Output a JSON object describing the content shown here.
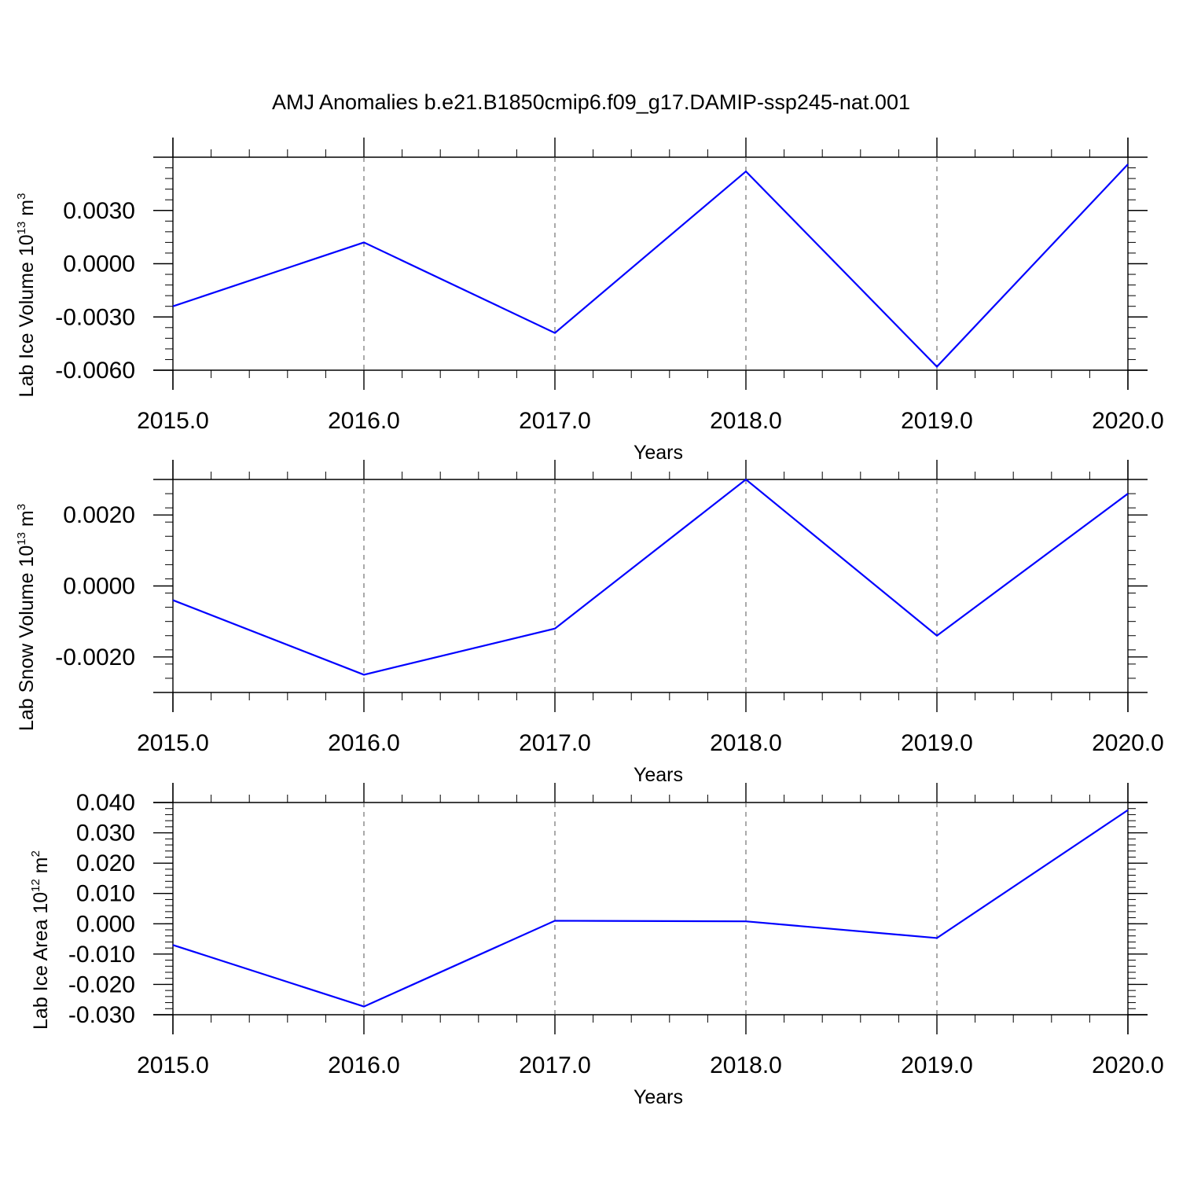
{
  "title": "AMJ Anomalies b.e21.B1850cmip6.f09_g17.DAMIP-ssp245-nat.001",
  "line_color": "#0000ff",
  "chart_data": [
    {
      "type": "line",
      "ylabel": "Lab Ice Volume 10",
      "ylabel_exp": "13",
      "ylabel_unit": "m",
      "ylabel_unit_exp": "3",
      "xlabel": "Years",
      "x_tick_labels": [
        "2015.0",
        "2016.0",
        "2017.0",
        "2018.0",
        "2019.0",
        "2020.0"
      ],
      "x_ticks": [
        2015,
        2016,
        2017,
        2018,
        2019,
        2020
      ],
      "y_tick_labels": [
        "-0.0060",
        "-0.0030",
        "0.0000",
        "0.0030"
      ],
      "y_ticks": [
        -0.006,
        -0.003,
        0.0,
        0.003
      ],
      "xlim": [
        2015,
        2020
      ],
      "ylim": [
        -0.006,
        0.006
      ],
      "x": [
        2015,
        2016,
        2017,
        2018,
        2019,
        2020
      ],
      "y": [
        -0.0024,
        0.0012,
        -0.0039,
        0.0052,
        -0.0058,
        0.0056
      ]
    },
    {
      "type": "line",
      "ylabel": "Lab Snow Volume 10",
      "ylabel_exp": "13",
      "ylabel_unit": "m",
      "ylabel_unit_exp": "3",
      "xlabel": "Years",
      "x_tick_labels": [
        "2015.0",
        "2016.0",
        "2017.0",
        "2018.0",
        "2019.0",
        "2020.0"
      ],
      "x_ticks": [
        2015,
        2016,
        2017,
        2018,
        2019,
        2020
      ],
      "y_tick_labels": [
        "-0.0020",
        "0.0000",
        "0.0020"
      ],
      "y_ticks": [
        -0.002,
        0.0,
        0.002
      ],
      "xlim": [
        2015,
        2020
      ],
      "ylim": [
        -0.003,
        0.003
      ],
      "x": [
        2015,
        2016,
        2017,
        2018,
        2019,
        2020
      ],
      "y": [
        -0.0004,
        -0.0025,
        -0.0012,
        0.003,
        -0.0014,
        0.0026
      ]
    },
    {
      "type": "line",
      "ylabel": "Lab Ice Area 10",
      "ylabel_exp": "12",
      "ylabel_unit": "m",
      "ylabel_unit_exp": "2",
      "xlabel": "Years",
      "x_tick_labels": [
        "2015.0",
        "2016.0",
        "2017.0",
        "2018.0",
        "2019.0",
        "2020.0"
      ],
      "x_ticks": [
        2015,
        2016,
        2017,
        2018,
        2019,
        2020
      ],
      "y_tick_labels": [
        "-0.030",
        "-0.020",
        "-0.010",
        "0.000",
        "0.010",
        "0.020",
        "0.030",
        "0.040"
      ],
      "y_ticks": [
        -0.03,
        -0.02,
        -0.01,
        0.0,
        0.01,
        0.02,
        0.03,
        0.04
      ],
      "xlim": [
        2015,
        2020
      ],
      "ylim": [
        -0.03,
        0.04
      ],
      "x": [
        2015,
        2016,
        2017,
        2018,
        2019,
        2020
      ],
      "y": [
        -0.007,
        -0.0273,
        0.001,
        0.0008,
        -0.0047,
        0.0375
      ]
    }
  ]
}
